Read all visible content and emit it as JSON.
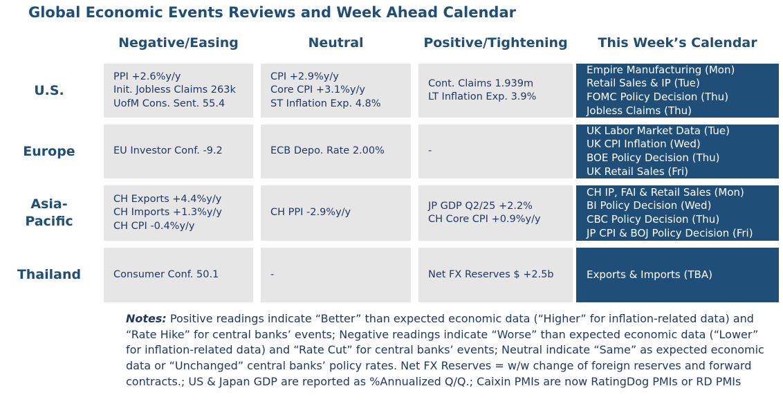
{
  "title": "Global Economic Events Reviews and Week Ahead Calendar",
  "columns": {
    "negative": "Negative/Easing",
    "neutral": "Neutral",
    "positive": "Positive/Tightening",
    "calendar": "This Week’s Calendar"
  },
  "rows": [
    {
      "region": "U.S.",
      "negative": [
        "PPI +2.6%y/y",
        "Init. Jobless Claims 263k",
        "UofM Cons. Sent. 55.4"
      ],
      "neutral": [
        "CPI +2.9%y/y",
        "Core CPI +3.1%y/y",
        "ST Inflation Exp. 4.8%"
      ],
      "positive": [
        "Cont. Claims 1.939m",
        "LT Inflation Exp. 3.9%"
      ],
      "calendar": [
        "Empire Manufacturing (Mon)",
        "Retail Sales & IP (Tue)",
        "FOMC Policy Decision (Thu)",
        "Jobless Claims (Thu)"
      ]
    },
    {
      "region": "Europe",
      "negative": [
        "EU Investor Conf. -9.2"
      ],
      "neutral": [
        "ECB Depo. Rate 2.00%"
      ],
      "positive": [
        "-"
      ],
      "calendar": [
        "UK Labor Market Data (Tue)",
        "UK CPI Inflation (Wed)",
        "BOE Policy Decision (Thu)",
        "UK Retail Sales (Fri)"
      ]
    },
    {
      "region_line1": "Asia-",
      "region_line2": "Pacific",
      "negative": [
        "CH Exports +4.4%y/y",
        "CH Imports +1.3%y/y",
        "CH CPI -0.4%y/y"
      ],
      "neutral": [
        "CH PPI -2.9%y/y"
      ],
      "positive": [
        "JP GDP Q2/25 +2.2%",
        "CH Core CPI +0.9%y/y"
      ],
      "calendar": [
        "CH IP, FAI & Retail Sales (Mon)",
        "BI Policy Decision (Wed)",
        "CBC Policy Decision (Thu)",
        "JP CPI & BOJ Policy Decision (Fri)"
      ]
    },
    {
      "region": "Thailand",
      "negative": [
        "Consumer Conf. 50.1"
      ],
      "neutral": [
        "-"
      ],
      "positive": [
        "Net FX Reserves $ +2.5b"
      ],
      "calendar": [
        "Exports & Imports (TBA)"
      ]
    }
  ],
  "notes": {
    "label": "Notes:",
    "text": " Positive readings indicate “Better” than expected economic data (“Higher” for inflation-related data) and “Rate Hike” for central banks’ events; Negative readings indicate “Worse” than expected economic data (“Lower” for inflation-related data) and “Rate Cut” for central banks’ events; Neutral indicate “Same” as expected economic data or “Unchanged” central banks’ policy rates. Net FX Reserves = w/w change of foreign reserves and forward contracts.; US & Japan GDP are reported as %Annualized Q/Q.; Caixin PMIs are now RatingDog PMIs or RD PMIs"
  }
}
